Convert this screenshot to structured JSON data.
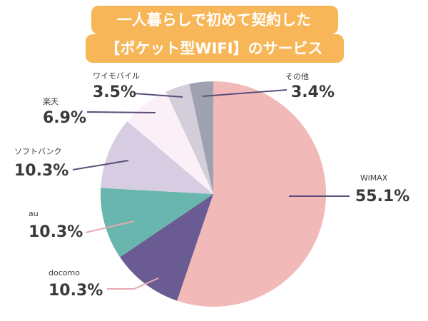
{
  "chart_data": {
    "type": "pie",
    "title": [
      "一人暮らしで初めて契約した",
      "【ポケット型WIFI】のサービス"
    ],
    "categories": [
      "WiMAX",
      "docomo",
      "au",
      "ソフトバンク",
      "楽天",
      "ワイモバイル",
      "その他"
    ],
    "values": [
      55.1,
      10.3,
      10.3,
      10.3,
      6.9,
      3.5,
      3.4
    ],
    "value_labels": [
      "55.1%",
      "10.3%",
      "10.3%",
      "10.3%",
      "6.9%",
      "3.5%",
      "3.4%"
    ],
    "colors": [
      "#f2b9b9",
      "#6b5b93",
      "#68b6ad",
      "#d7cde2",
      "#fcf0f8",
      "#d3ced9",
      "#9ea2b0"
    ]
  }
}
